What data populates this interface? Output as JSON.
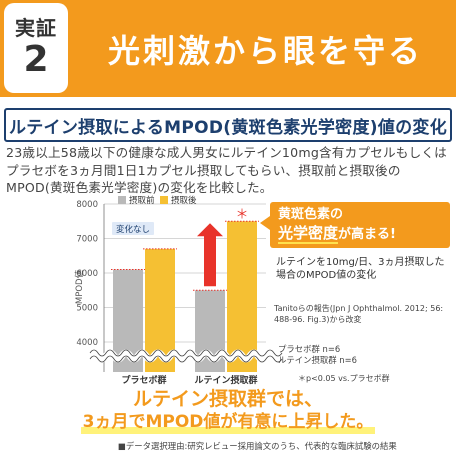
{
  "header": {
    "badge_top": "実証",
    "badge_num": "2",
    "title": "光刺激から眼を守る"
  },
  "subtitle": "ルテイン摂取によるMPOD(黄斑色素光学密度)値の変化",
  "description": "23歳以上58歳以下の健康な成人男女にルテイン10mg含有カプセルもしくはプラセボを3ヵ月間1日1カプセル摂取してもらい、摂取前と摂取後のMPOD(黄斑色素光学密度)の変化を比較した。",
  "callout": {
    "line1": "黄斑色素の",
    "line2_highlight": "光学密度",
    "line2_rest": "が高まる!"
  },
  "notes": {
    "lutein_effect": "ルテインを10mg/日、3ヵ月摂取した場合のMPOD値の変化",
    "citation": "Tanitoらの報告(Jpn J Ophthalmol. 2012; 56: 488-96. Fig.3)から改変",
    "groups": "プラセボ群 n=6\nルテイン摂取群 n=6",
    "significance": "＊p<0.05 vs.プラセボ群"
  },
  "conclusion": {
    "line1": "ルテイン摂取群では、",
    "line2": "3ヵ月でMPOD値が有意に上昇した。"
  },
  "footnote": "■データ選択理由:研究レビュー採用論文のうち、代表的な臨床試験の結果",
  "colors": {
    "accent": "#f39a1d",
    "navy": "#1d3f6e",
    "before_bar": "#b9b9b9",
    "after_bar": "#f5c033",
    "arrow": "#e8332a"
  },
  "chart_data": {
    "type": "bar",
    "categories": [
      "プラセボ群",
      "ルテイン摂取群"
    ],
    "series": [
      {
        "name": "摂取前",
        "values": [
          6100,
          5500
        ]
      },
      {
        "name": "摂取後",
        "values": [
          6700,
          7500
        ]
      }
    ],
    "ylabel": "MPOD値",
    "y_ticks": [
      "8000",
      "7000",
      "6000",
      "5000",
      "4000",
      "3000",
      "2000",
      "1000",
      "0"
    ],
    "ylim": [
      0,
      8000
    ],
    "axis_break": true,
    "annotations": {
      "placebo_no_change": "変化なし",
      "significance_mark": "＊"
    },
    "legend_placement": "top-left"
  }
}
